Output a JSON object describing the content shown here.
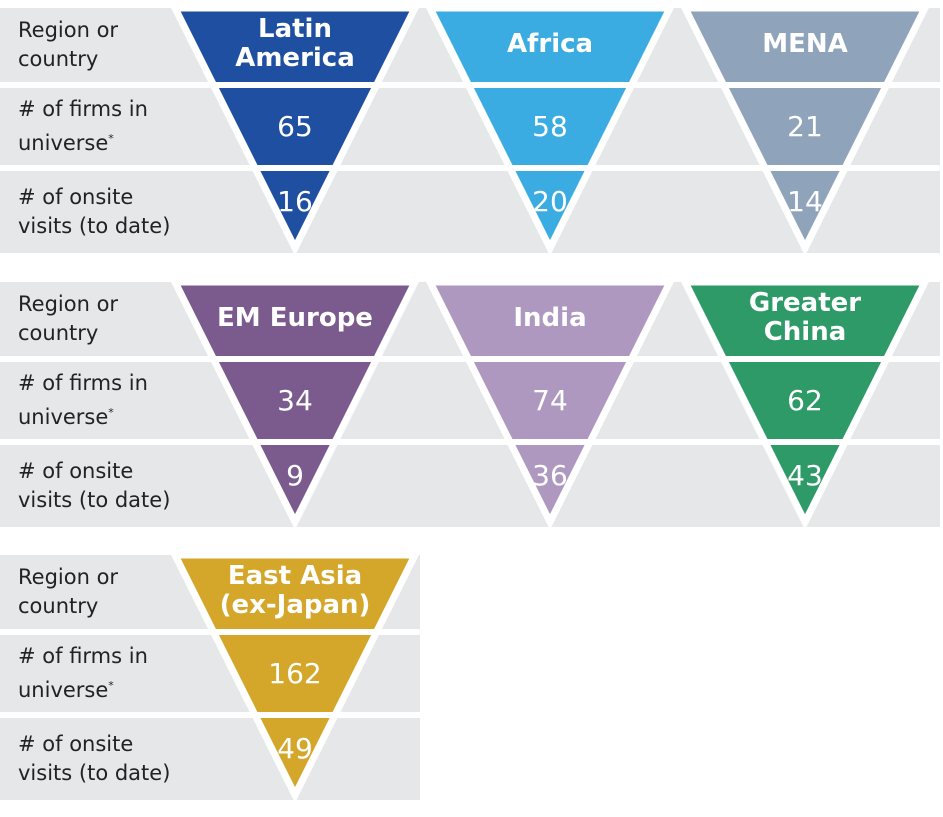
{
  "row_labels": {
    "region": "Region or country",
    "firms": "# of firms in universe",
    "firms_note": "*",
    "visits": "# of onsite visits (to date)"
  },
  "regions": [
    {
      "name": "Latin America",
      "color": "#1f4fa0",
      "firms": 65,
      "visits": 16
    },
    {
      "name": "Africa",
      "color": "#3aace2",
      "firms": 58,
      "visits": 20
    },
    {
      "name": "MENA",
      "color": "#8fa3bb",
      "firms": 21,
      "visits": 14
    },
    {
      "name": "EM Europe",
      "color": "#7b5b8e",
      "firms": 34,
      "visits": 9
    },
    {
      "name": "India",
      "color": "#ae98c0",
      "firms": 74,
      "visits": 36
    },
    {
      "name": "Greater China",
      "color": "#2e9a68",
      "firms": 62,
      "visits": 43
    },
    {
      "name": "East Asia (ex-Japan)",
      "color": "#d4a62a",
      "firms": 162,
      "visits": 49
    }
  ]
}
